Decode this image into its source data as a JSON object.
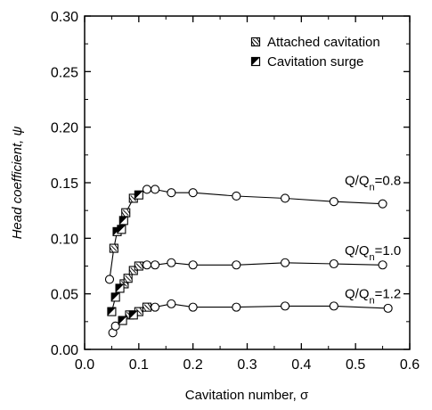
{
  "chart_data": {
    "type": "scatter",
    "xlabel": "Cavitation number, σ",
    "ylabel": "Head coefficient, ψ",
    "xlim": [
      0.0,
      0.6
    ],
    "ylim": [
      0.0,
      0.3
    ],
    "x_ticks": [
      "0.0",
      "0.1",
      "0.2",
      "0.3",
      "0.4",
      "0.5",
      "0.6"
    ],
    "y_ticks": [
      "0.00",
      "0.05",
      "0.10",
      "0.15",
      "0.20",
      "0.25",
      "0.30"
    ],
    "grid": false,
    "legend": {
      "placement": "top-right",
      "entries": [
        {
          "label": "Attached cavitation",
          "marker": "square-hatched"
        },
        {
          "label": "Cavitation surge",
          "marker": "square-half-filled"
        }
      ]
    },
    "series": [
      {
        "label_main": "Q/Q",
        "label_sub": "n",
        "label_value": "=0.8",
        "circles": [
          [
            0.046,
            0.063
          ],
          [
            0.115,
            0.144
          ],
          [
            0.13,
            0.144
          ],
          [
            0.16,
            0.141
          ],
          [
            0.2,
            0.141
          ],
          [
            0.28,
            0.138
          ],
          [
            0.37,
            0.136
          ],
          [
            0.46,
            0.133
          ],
          [
            0.55,
            0.131
          ]
        ],
        "attached": [
          [
            0.054,
            0.091
          ],
          [
            0.076,
            0.123
          ],
          [
            0.09,
            0.136
          ]
        ],
        "surge": [
          [
            0.06,
            0.106
          ],
          [
            0.068,
            0.108
          ],
          [
            0.072,
            0.116
          ],
          [
            0.1,
            0.139
          ]
        ]
      },
      {
        "label_main": "Q/Q",
        "label_sub": "n",
        "label_value": "=1.0",
        "circles": [
          [
            0.115,
            0.076
          ],
          [
            0.13,
            0.076
          ],
          [
            0.16,
            0.078
          ],
          [
            0.2,
            0.076
          ],
          [
            0.28,
            0.076
          ],
          [
            0.37,
            0.078
          ],
          [
            0.46,
            0.077
          ],
          [
            0.55,
            0.076
          ]
        ],
        "attached": [
          [
            0.073,
            0.059
          ],
          [
            0.08,
            0.064
          ],
          [
            0.09,
            0.071
          ],
          [
            0.1,
            0.075
          ]
        ],
        "surge": [
          [
            0.05,
            0.034
          ],
          [
            0.057,
            0.047
          ],
          [
            0.065,
            0.055
          ]
        ]
      },
      {
        "label_main": "Q/Q",
        "label_sub": "n",
        "label_value": "=1.2",
        "circles": [
          [
            0.052,
            0.015
          ],
          [
            0.057,
            0.021
          ],
          [
            0.13,
            0.038
          ],
          [
            0.16,
            0.041
          ],
          [
            0.2,
            0.038
          ],
          [
            0.28,
            0.038
          ],
          [
            0.37,
            0.039
          ],
          [
            0.46,
            0.039
          ],
          [
            0.56,
            0.037
          ]
        ],
        "attached": [
          [
            0.083,
            0.031
          ],
          [
            0.1,
            0.034
          ],
          [
            0.115,
            0.038
          ]
        ],
        "surge": [
          [
            0.07,
            0.026
          ],
          [
            0.09,
            0.031
          ]
        ]
      }
    ]
  }
}
